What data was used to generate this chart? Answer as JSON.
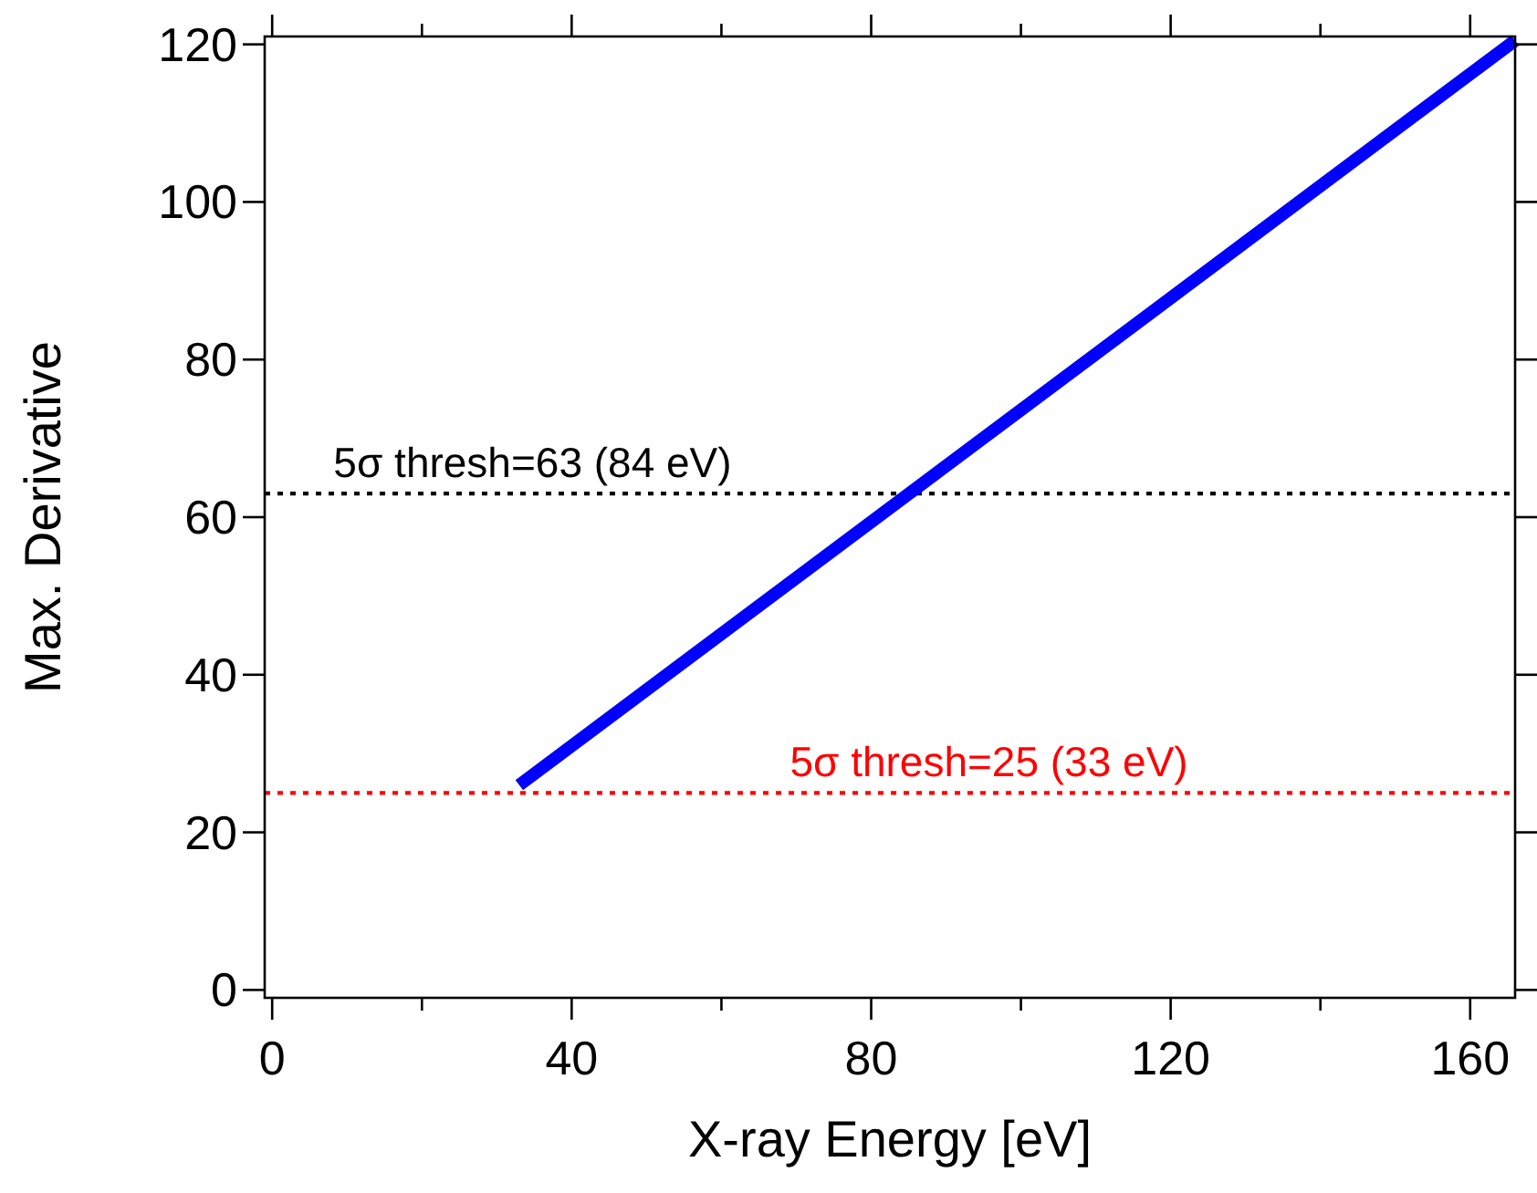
{
  "chart_data": {
    "type": "line",
    "xlabel": "X-ray Energy [eV]",
    "ylabel": "Max. Derivative",
    "series": [
      {
        "color": "#0000ff",
        "x": [
          33,
          166
        ],
        "values": [
          26,
          120.5
        ]
      }
    ],
    "xlim": [
      -1,
      166
    ],
    "ylim": [
      -1,
      121
    ],
    "xticks": [
      0,
      {
        "value": 20,
        "label": null
      },
      40,
      {
        "value": 60,
        "label": null
      },
      80,
      {
        "value": 100,
        "label": null
      },
      120,
      {
        "value": 140,
        "label": null
      },
      160
    ],
    "yticks": [
      0,
      20,
      40,
      60,
      80,
      100,
      120
    ],
    "ref_lines": [
      {
        "axis": "y",
        "value": 63,
        "label": "5σ thresh=63 (84 eV)",
        "color": "#000000",
        "line_style": "dotted"
      },
      {
        "axis": "y",
        "value": 25,
        "label": "5σ thresh=25 (33 eV)",
        "color": "#ff0000",
        "line_style": "dotted"
      }
    ],
    "grid": false,
    "marker": "none",
    "line_style": "solid"
  }
}
